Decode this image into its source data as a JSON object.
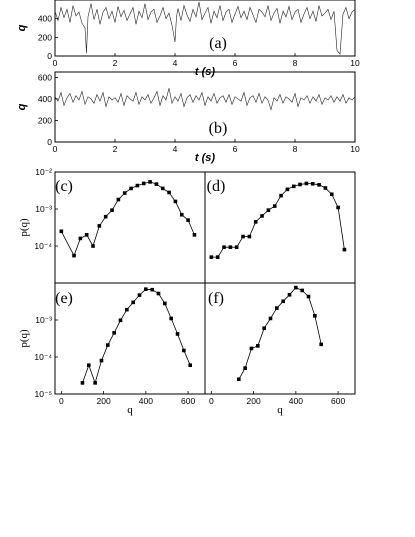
{
  "chart_data": [
    {
      "id": "a",
      "type": "line",
      "panel_label": "(a)",
      "xlabel": "t (s)",
      "ylabel": "q",
      "xlim": [
        0,
        10
      ],
      "ylim": [
        0,
        600
      ],
      "xticks": [
        "0",
        "2",
        "4",
        "6",
        "8",
        "10"
      ],
      "yticks": [
        "0",
        "200",
        "400"
      ],
      "series": [
        {
          "x": [
            0,
            0.1,
            0.2,
            0.3,
            0.4,
            0.5,
            0.6,
            0.7,
            0.8,
            0.9,
            1.0,
            1.05,
            1.1,
            1.2,
            1.3,
            1.4,
            1.5,
            1.6,
            1.7,
            1.8,
            1.9,
            2.0,
            2.1,
            2.2,
            2.3,
            2.4,
            2.5,
            2.6,
            2.7,
            2.8,
            2.9,
            3.0,
            3.1,
            3.2,
            3.3,
            3.4,
            3.5,
            3.6,
            3.7,
            3.8,
            3.9,
            4.0,
            4.05,
            4.1,
            4.2,
            4.3,
            4.4,
            4.5,
            4.6,
            4.7,
            4.8,
            4.9,
            5.0,
            5.1,
            5.2,
            5.3,
            5.4,
            5.5,
            5.6,
            5.7,
            5.8,
            5.9,
            6.0,
            6.1,
            6.2,
            6.3,
            6.4,
            6.5,
            6.6,
            6.7,
            6.8,
            6.9,
            7.0,
            7.1,
            7.2,
            7.3,
            7.4,
            7.5,
            7.6,
            7.7,
            7.8,
            7.9,
            8.0,
            8.1,
            8.2,
            8.3,
            8.4,
            8.5,
            8.6,
            8.7,
            8.8,
            8.9,
            9.0,
            9.1,
            9.2,
            9.3,
            9.4,
            9.5,
            9.6,
            9.7,
            9.8,
            9.9,
            10.0
          ],
          "values": [
            480,
            380,
            520,
            410,
            500,
            360,
            540,
            430,
            470,
            350,
            300,
            30,
            420,
            560,
            390,
            500,
            340,
            470,
            520,
            400,
            480,
            360,
            530,
            420,
            490,
            380,
            450,
            520,
            340,
            480,
            410,
            560,
            390,
            470,
            500,
            360,
            430,
            520,
            400,
            460,
            330,
            150,
            420,
            510,
            380,
            540,
            440,
            370,
            500,
            420,
            580,
            390,
            460,
            520,
            350,
            480,
            410,
            540,
            380,
            470,
            500,
            360,
            450,
            530,
            410,
            480,
            390,
            520,
            440,
            360,
            500,
            470,
            420,
            540,
            380,
            460,
            510,
            350,
            480,
            420,
            530,
            390,
            470,
            500,
            360,
            450,
            520,
            400,
            480,
            370,
            540,
            430,
            460,
            500,
            390,
            480,
            60,
            20,
            450,
            520,
            400,
            470,
            500
          ]
        }
      ]
    },
    {
      "id": "b",
      "type": "line",
      "panel_label": "(b)",
      "xlabel": "t (s)",
      "ylabel": "q",
      "xlim": [
        0,
        10
      ],
      "ylim": [
        0,
        650
      ],
      "xticks": [
        "0",
        "2",
        "4",
        "6",
        "8",
        "10"
      ],
      "yticks": [
        "0",
        "200",
        "400",
        "600"
      ],
      "series": [
        {
          "x": [
            0,
            0.1,
            0.2,
            0.3,
            0.4,
            0.5,
            0.6,
            0.7,
            0.8,
            0.9,
            1.0,
            1.1,
            1.2,
            1.3,
            1.4,
            1.5,
            1.6,
            1.7,
            1.8,
            1.9,
            2.0,
            2.1,
            2.2,
            2.3,
            2.4,
            2.5,
            2.6,
            2.7,
            2.8,
            2.9,
            3.0,
            3.1,
            3.2,
            3.3,
            3.4,
            3.5,
            3.6,
            3.7,
            3.8,
            3.9,
            4.0,
            4.1,
            4.2,
            4.3,
            4.4,
            4.5,
            4.6,
            4.7,
            4.8,
            4.9,
            5.0,
            5.1,
            5.2,
            5.3,
            5.4,
            5.5,
            5.6,
            5.7,
            5.8,
            5.9,
            6.0,
            6.1,
            6.2,
            6.3,
            6.4,
            6.5,
            6.6,
            6.7,
            6.8,
            6.9,
            7.0,
            7.1,
            7.2,
            7.3,
            7.4,
            7.5,
            7.6,
            7.7,
            7.8,
            7.9,
            8.0,
            8.1,
            8.2,
            8.3,
            8.4,
            8.5,
            8.6,
            8.7,
            8.8,
            8.9,
            9.0,
            9.1,
            9.2,
            9.3,
            9.4,
            9.5,
            9.6,
            9.7,
            9.8,
            9.9,
            10.0
          ],
          "values": [
            420,
            380,
            460,
            340,
            410,
            450,
            370,
            430,
            390,
            470,
            350,
            420,
            400,
            360,
            440,
            380,
            460,
            330,
            420,
            390,
            410,
            370,
            450,
            340,
            430,
            400,
            380,
            460,
            350,
            420,
            390,
            440,
            360,
            410,
            470,
            340,
            430,
            390,
            500,
            360,
            420,
            380,
            450,
            330,
            410,
            440,
            370,
            430,
            390,
            460,
            340,
            420,
            380,
            450,
            360,
            410,
            430,
            370,
            440,
            350,
            420,
            400,
            380,
            460,
            340,
            410,
            430,
            370,
            450,
            360,
            420,
            390,
            300,
            410,
            380,
            440,
            360,
            420,
            400,
            370,
            450,
            330,
            410,
            390,
            430,
            360,
            420,
            380,
            440,
            350,
            410,
            390,
            430,
            370,
            420,
            380,
            440,
            360,
            410,
            390,
            420
          ]
        }
      ]
    },
    {
      "id": "c",
      "type": "line",
      "panel_label": "(c)",
      "ylabel": "p(q)",
      "yscale": "log",
      "xlim": [
        -30,
        680
      ],
      "ylim": [
        1e-05,
        0.01
      ],
      "yticks": [
        "10⁻²",
        "10⁻³",
        "10⁻⁴"
      ],
      "series": [
        {
          "x": [
            0,
            60,
            90,
            120,
            150,
            180,
            210,
            240,
            270,
            300,
            330,
            360,
            390,
            420,
            450,
            480,
            510,
            540,
            570,
            600,
            630
          ],
          "values": [
            0.00025,
            5.5e-05,
            0.00016,
            0.0002,
            0.0001,
            0.00035,
            0.00062,
            0.00093,
            0.0018,
            0.0027,
            0.0036,
            0.0043,
            0.0049,
            0.0054,
            0.0047,
            0.0036,
            0.0028,
            0.0016,
            0.0007,
            0.0005,
            0.0002
          ]
        }
      ]
    },
    {
      "id": "d",
      "type": "line",
      "panel_label": "(d)",
      "yscale": "log",
      "xlim": [
        -30,
        680
      ],
      "ylim": [
        1e-05,
        0.01
      ],
      "series": [
        {
          "x": [
            0,
            30,
            60,
            90,
            120,
            150,
            180,
            210,
            240,
            270,
            300,
            330,
            360,
            390,
            420,
            450,
            480,
            510,
            540,
            570,
            600,
            630
          ],
          "values": [
            5e-05,
            5e-05,
            9.3e-05,
            9.3e-05,
            9.3e-05,
            0.00018,
            0.00018,
            0.00045,
            0.00065,
            0.00093,
            0.0012,
            0.0023,
            0.0034,
            0.0041,
            0.0046,
            0.0049,
            0.0048,
            0.0045,
            0.0037,
            0.0025,
            0.0011,
            8e-05
          ]
        }
      ]
    },
    {
      "id": "e",
      "type": "line",
      "panel_label": "(e)",
      "xlabel": "q",
      "ylabel": "p(q)",
      "yscale": "log",
      "xlim": [
        -30,
        680
      ],
      "ylim": [
        1e-05,
        0.01
      ],
      "xticks": [
        "0",
        "200",
        "400",
        "600"
      ],
      "yticks": [
        "10⁻³",
        "10⁻⁴",
        "10⁻⁵"
      ],
      "series": [
        {
          "x": [
            100,
            130,
            160,
            190,
            220,
            250,
            280,
            310,
            340,
            370,
            400,
            430,
            460,
            490,
            520,
            550,
            580,
            610
          ],
          "values": [
            2e-05,
            6e-05,
            2e-05,
            8e-05,
            0.00021,
            0.00045,
            0.00098,
            0.0019,
            0.003,
            0.0047,
            0.0068,
            0.0066,
            0.0052,
            0.0028,
            0.0011,
            0.00042,
            0.00015,
            6e-05
          ]
        }
      ]
    },
    {
      "id": "f",
      "type": "line",
      "panel_label": "(f)",
      "xlabel": "q",
      "yscale": "log",
      "xlim": [
        -30,
        680
      ],
      "ylim": [
        1e-05,
        0.01
      ],
      "xticks": [
        "0",
        "200",
        "400",
        "600"
      ],
      "series": [
        {
          "x": [
            130,
            160,
            190,
            220,
            250,
            280,
            310,
            340,
            370,
            400,
            430,
            460,
            490,
            520
          ],
          "values": [
            2.5e-05,
            5e-05,
            0.00017,
            0.0002,
            0.0006,
            0.0011,
            0.0021,
            0.0032,
            0.0048,
            0.0075,
            0.0063,
            0.0043,
            0.0013,
            0.00022
          ]
        }
      ]
    }
  ]
}
